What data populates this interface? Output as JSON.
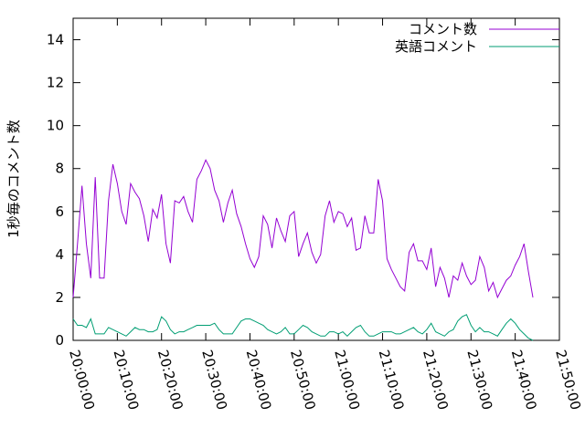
{
  "chart_data": {
    "type": "line",
    "y_label": "1秒毎のコメント数",
    "x": [
      "20:00:00",
      "20:01:00",
      "20:02:00",
      "20:03:00",
      "20:04:00",
      "20:05:00",
      "20:06:00",
      "20:07:00",
      "20:08:00",
      "20:09:00",
      "20:10:00",
      "20:11:00",
      "20:12:00",
      "20:13:00",
      "20:14:00",
      "20:15:00",
      "20:16:00",
      "20:17:00",
      "20:18:00",
      "20:19:00",
      "20:20:00",
      "20:21:00",
      "20:22:00",
      "20:23:00",
      "20:24:00",
      "20:25:00",
      "20:26:00",
      "20:27:00",
      "20:28:00",
      "20:29:00",
      "20:30:00",
      "20:31:00",
      "20:32:00",
      "20:33:00",
      "20:34:00",
      "20:35:00",
      "20:36:00",
      "20:37:00",
      "20:38:00",
      "20:39:00",
      "20:40:00",
      "20:41:00",
      "20:42:00",
      "20:43:00",
      "20:44:00",
      "20:45:00",
      "20:46:00",
      "20:47:00",
      "20:48:00",
      "20:49:00",
      "20:50:00",
      "20:51:00",
      "20:52:00",
      "20:53:00",
      "20:54:00",
      "20:55:00",
      "20:56:00",
      "20:57:00",
      "20:58:00",
      "20:59:00",
      "21:00:00",
      "21:01:00",
      "21:02:00",
      "21:03:00",
      "21:04:00",
      "21:05:00",
      "21:06:00",
      "21:07:00",
      "21:08:00",
      "21:09:00",
      "21:10:00",
      "21:11:00",
      "21:12:00",
      "21:13:00",
      "21:14:00",
      "21:15:00",
      "21:16:00",
      "21:17:00",
      "21:18:00",
      "21:19:00",
      "21:20:00",
      "21:21:00",
      "21:22:00",
      "21:23:00",
      "21:24:00",
      "21:25:00",
      "21:26:00",
      "21:27:00",
      "21:28:00",
      "21:29:00",
      "21:30:00",
      "21:31:00",
      "21:32:00",
      "21:33:00",
      "21:34:00",
      "21:35:00",
      "21:36:00",
      "21:37:00",
      "21:38:00",
      "21:39:00",
      "21:40:00",
      "21:41:00",
      "21:42:00",
      "21:43:00",
      "21:44:00"
    ],
    "series": [
      {
        "name": "コメント数",
        "color": "#9400d3",
        "values": [
          2.0,
          4.5,
          7.2,
          4.5,
          2.9,
          7.6,
          2.9,
          2.9,
          6.5,
          8.2,
          7.3,
          6.0,
          5.4,
          7.3,
          6.9,
          6.6,
          5.8,
          4.6,
          6.1,
          5.7,
          6.8,
          4.5,
          3.6,
          6.5,
          6.4,
          6.7,
          6.0,
          5.5,
          7.5,
          7.9,
          8.4,
          8.0,
          7.0,
          6.5,
          5.5,
          6.4,
          7.0,
          5.9,
          5.3,
          4.5,
          3.8,
          3.4,
          3.9,
          5.8,
          5.4,
          4.3,
          5.7,
          5.1,
          4.6,
          5.8,
          6.0,
          3.9,
          4.5,
          5.0,
          4.1,
          3.6,
          4.0,
          5.8,
          6.5,
          5.5,
          6.0,
          5.9,
          5.3,
          5.7,
          4.2,
          4.3,
          5.8,
          5.0,
          5.0,
          7.5,
          6.5,
          3.8,
          3.3,
          2.9,
          2.5,
          2.3,
          4.1,
          4.5,
          3.7,
          3.7,
          3.3,
          4.3,
          2.5,
          3.4,
          2.9,
          2.0,
          3.0,
          2.8,
          3.6,
          3.0,
          2.6,
          2.8,
          3.9,
          3.4,
          2.3,
          2.7,
          2.0,
          2.4,
          2.8,
          3.0,
          3.5,
          3.9,
          4.5,
          3.2,
          2.0
        ]
      },
      {
        "name": "英語コメント",
        "color": "#009e73",
        "values": [
          1.0,
          0.7,
          0.7,
          0.6,
          1.0,
          0.3,
          0.3,
          0.3,
          0.6,
          0.5,
          0.4,
          0.3,
          0.2,
          0.4,
          0.6,
          0.5,
          0.5,
          0.4,
          0.4,
          0.5,
          1.1,
          0.9,
          0.5,
          0.3,
          0.4,
          0.4,
          0.5,
          0.6,
          0.7,
          0.7,
          0.7,
          0.7,
          0.8,
          0.5,
          0.3,
          0.3,
          0.3,
          0.6,
          0.9,
          1.0,
          1.0,
          0.9,
          0.8,
          0.7,
          0.5,
          0.4,
          0.3,
          0.4,
          0.6,
          0.3,
          0.3,
          0.5,
          0.7,
          0.6,
          0.4,
          0.3,
          0.2,
          0.2,
          0.4,
          0.4,
          0.3,
          0.4,
          0.2,
          0.4,
          0.6,
          0.7,
          0.4,
          0.2,
          0.2,
          0.3,
          0.4,
          0.4,
          0.4,
          0.3,
          0.3,
          0.4,
          0.5,
          0.6,
          0.4,
          0.3,
          0.5,
          0.8,
          0.4,
          0.3,
          0.2,
          0.4,
          0.5,
          0.9,
          1.1,
          1.2,
          0.7,
          0.4,
          0.6,
          0.4,
          0.4,
          0.3,
          0.2,
          0.5,
          0.8,
          1.0,
          0.8,
          0.5,
          0.3,
          0.1,
          0.0
        ]
      }
    ],
    "xlim": [
      "20:00:00",
      "21:50:00"
    ],
    "xticks": [
      "20:00:00",
      "20:10:00",
      "20:20:00",
      "20:30:00",
      "20:40:00",
      "20:50:00",
      "21:00:00",
      "21:10:00",
      "21:20:00",
      "21:30:00",
      "21:40:00",
      "21:50:00"
    ],
    "ylim": [
      0,
      15
    ],
    "yticks": [
      0,
      2,
      4,
      6,
      8,
      10,
      12,
      14
    ],
    "legend": "top-right"
  }
}
